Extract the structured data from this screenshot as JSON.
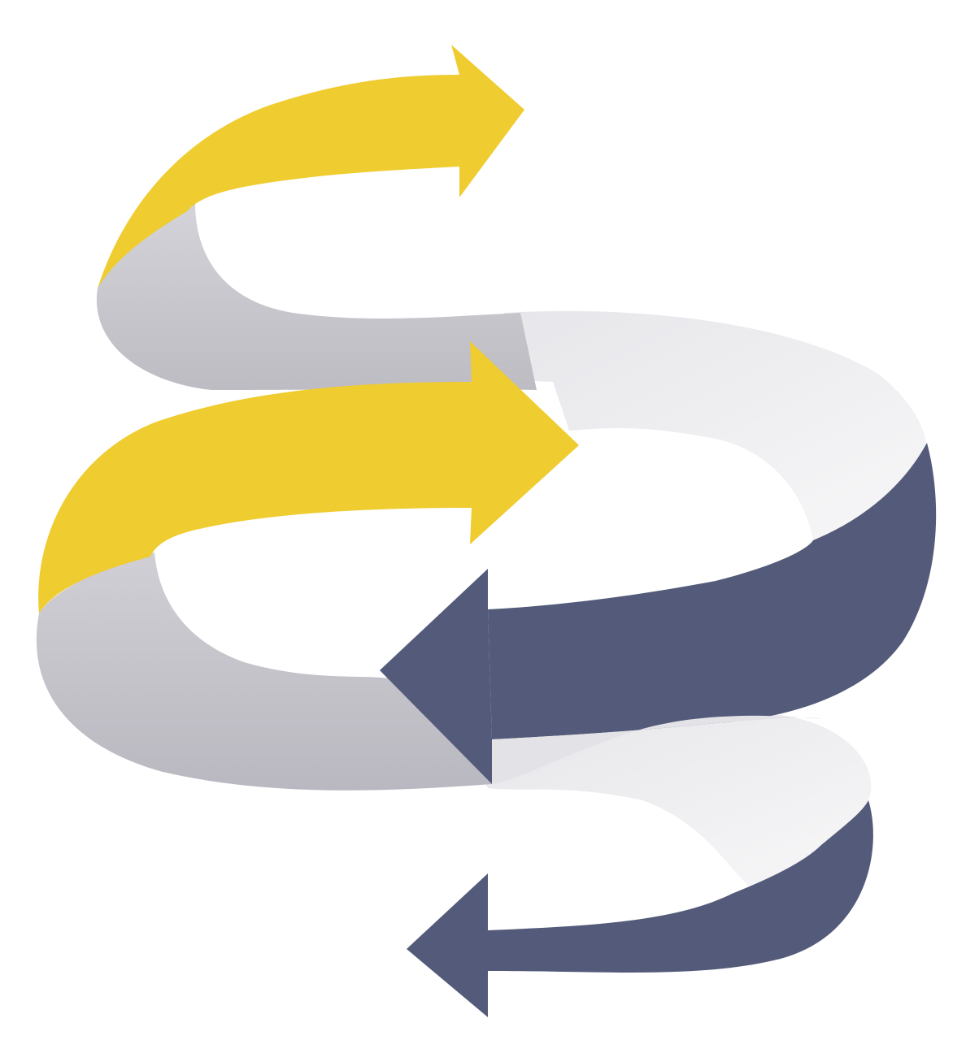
{
  "artwork": {
    "subject": "serpentine-ribbon-arrows",
    "arrows": [
      {
        "name": "arrow-1",
        "direction": "right",
        "color": "#efcc2f"
      },
      {
        "name": "arrow-2",
        "direction": "right",
        "color": "#efcc2f"
      },
      {
        "name": "arrow-3",
        "direction": "left",
        "color": "#545b7a"
      },
      {
        "name": "arrow-4",
        "direction": "left",
        "color": "#545b7a"
      }
    ],
    "colors": {
      "background": "#ffffff",
      "yellow": "#efcc2f",
      "yellow_light": "#f4d84a",
      "gray": "#c2c1c8",
      "gray_light": "#dddce2",
      "white_band": "#f2f2f4",
      "navy": "#545b7a",
      "navy_dark": "#4a5070"
    }
  }
}
